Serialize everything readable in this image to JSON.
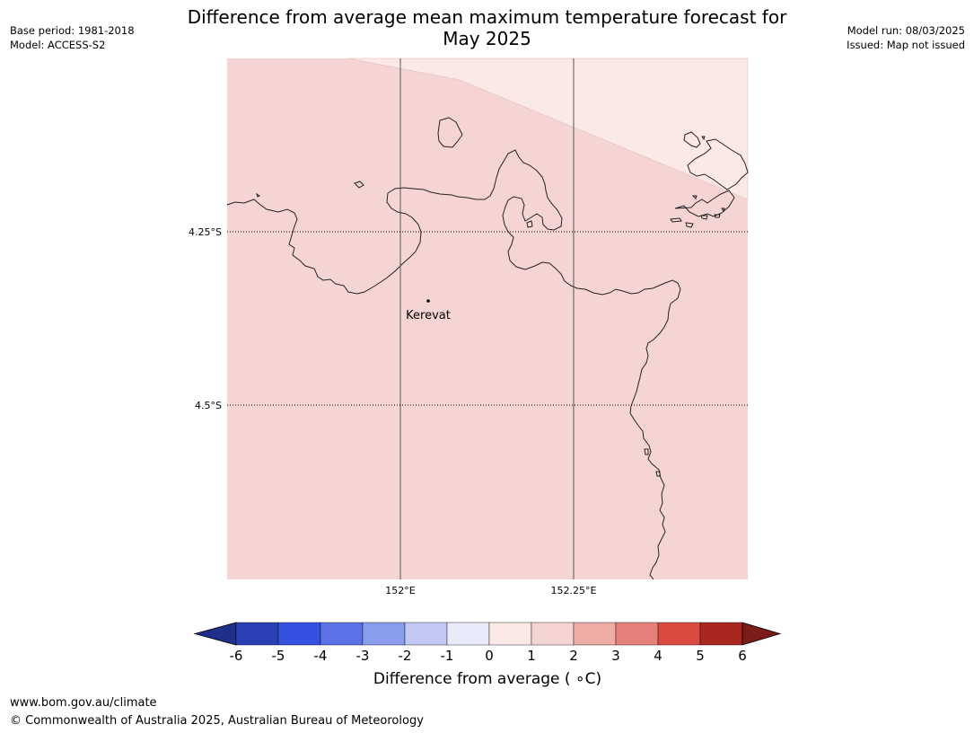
{
  "header": {
    "base_period": "Base period: 1981-2018",
    "model": "Model: ACCESS-S2",
    "model_run": "Model run: 08/03/2025",
    "issued": "Issued: Map not issued",
    "title_line1": "Difference from average mean maximum temperature forecast for",
    "title_line2": "May 2025"
  },
  "map": {
    "lat_labels": [
      "4.25°S",
      "4.5°S"
    ],
    "lon_labels": [
      "152°E",
      "152.25°E"
    ],
    "place": "Kerevat",
    "fill_main": "#f5d5d3",
    "fill_light": "#fbe9e7",
    "coast_color": "#222222"
  },
  "colorbar": {
    "ticks": [
      "-6",
      "-5",
      "-4",
      "-3",
      "-2",
      "-1",
      "0",
      "1",
      "2",
      "3",
      "4",
      "5",
      "6"
    ],
    "colors": [
      "#1f2f8a",
      "#2a3fb4",
      "#3350de",
      "#5a72e6",
      "#8a9cec",
      "#c1c8f3",
      "#e9ebfb",
      "#fbe9e7",
      "#f5d5d3",
      "#eeaca7",
      "#e5807b",
      "#da4a40",
      "#a8271f",
      "#7a1c18"
    ],
    "label": "Difference from average ( ∘C)"
  },
  "footer": {
    "url": "www.bom.gov.au/climate",
    "copyright": "© Commonwealth of Australia 2025, Australian Bureau of Meteorology"
  }
}
